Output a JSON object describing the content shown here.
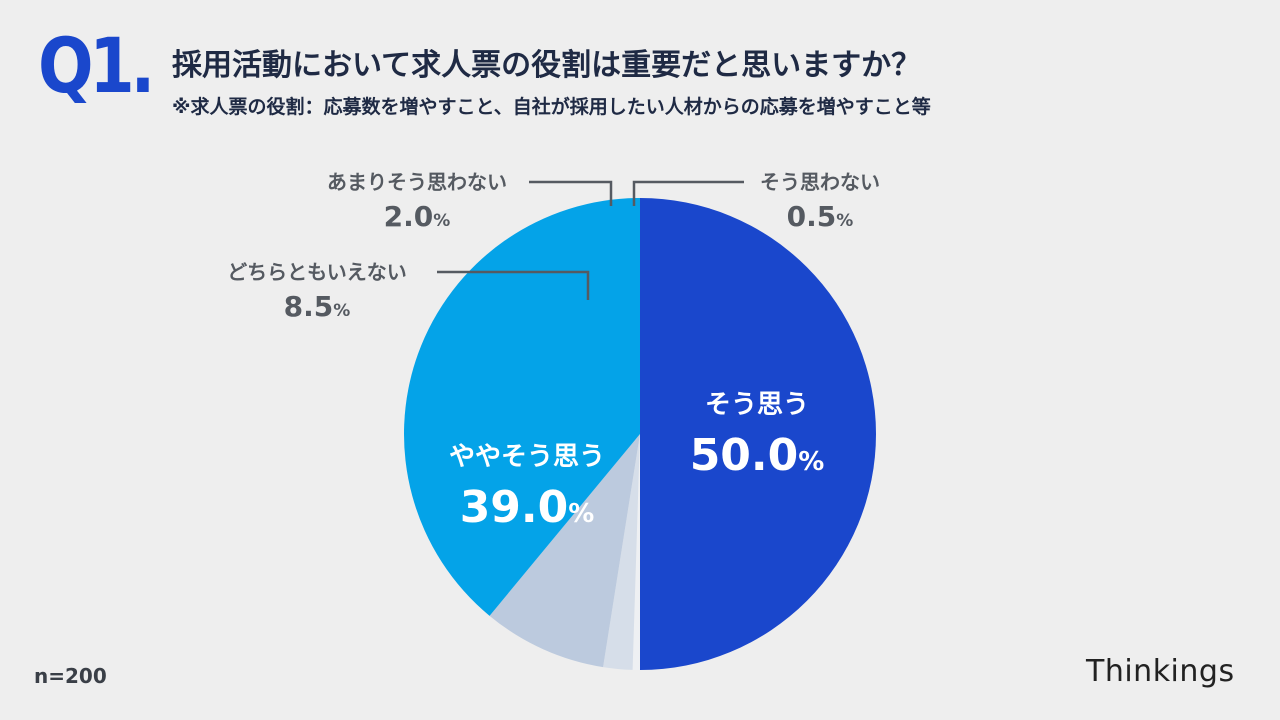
{
  "header": {
    "question_number": "Q1.",
    "title": "採用活動において求人票の役割は重要だと思いますか？",
    "subtitle": "※求人票の役割：応募数を増やすこと、自社が採用したい人材からの応募を増やすこと等"
  },
  "footer": {
    "sample_size": "n=200",
    "brand": "Thinkings"
  },
  "colors": {
    "strongly_agree": "#1a47cc",
    "somewhat_agree": "#04a3e8",
    "neutral": "#bccade",
    "somewhat_disagree": "#d6dee9",
    "disagree": "#eef0f3",
    "label_inside": "#ffffff",
    "label_outside": "#555a61",
    "leader_line": "#555a61"
  },
  "chart_data": {
    "type": "pie",
    "title": "採用活動において求人票の役割は重要だと思いますか？",
    "start": "12 o'clock, clockwise",
    "unit": "%",
    "slices": [
      {
        "key": "strongly_agree",
        "label": "そう思う",
        "value": 50.0,
        "value_text": "50.0",
        "placement": "inside"
      },
      {
        "key": "disagree",
        "label": "そう思わない",
        "value": 0.5,
        "value_text": "0.5",
        "placement": "outside-top-right"
      },
      {
        "key": "somewhat_disagree",
        "label": "あまりそう思わない",
        "value": 2.0,
        "value_text": "2.0",
        "placement": "outside-top-left"
      },
      {
        "key": "neutral",
        "label": "どちらともいえない",
        "value": 8.5,
        "value_text": "8.5",
        "placement": "outside-left"
      },
      {
        "key": "somewhat_agree",
        "label": "ややそう思う",
        "value": 39.0,
        "value_text": "39.0",
        "placement": "inside"
      }
    ]
  }
}
